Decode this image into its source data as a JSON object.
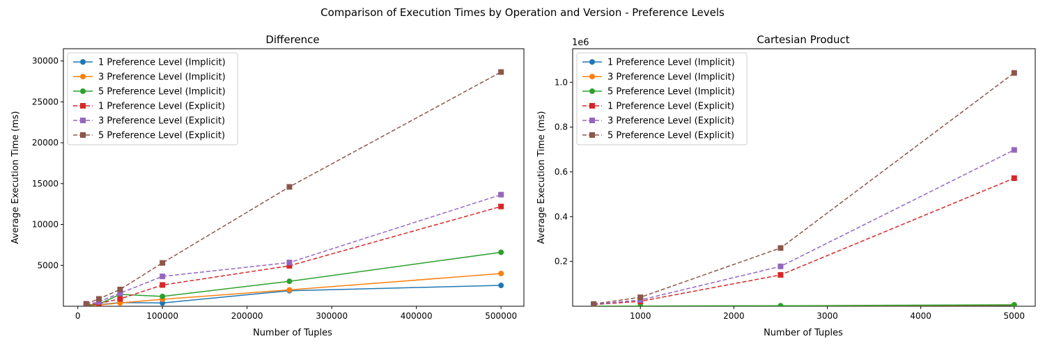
{
  "suptitle": "Comparison of Execution Times by Operation and Version - Preference Levels",
  "chart_data": [
    {
      "type": "line",
      "title": "Difference",
      "xlabel": "Number of Tuples",
      "ylabel": "Average Execution Time (ms)",
      "xlim": [
        -17000,
        527000
      ],
      "ylim": [
        0,
        31500
      ],
      "xticks": [
        0,
        100000,
        200000,
        300000,
        400000,
        500000
      ],
      "xtick_labels": [
        "0",
        "100000",
        "200000",
        "300000",
        "400000",
        "500000"
      ],
      "yticks": [
        5000,
        10000,
        15000,
        20000,
        25000,
        30000
      ],
      "ytick_labels": [
        "5000",
        "10000",
        "15000",
        "20000",
        "25000",
        "30000"
      ],
      "offset_label": "",
      "grid": false,
      "legend_position": "upper-left",
      "x": [
        10000,
        25000,
        50000,
        100000,
        250000,
        500000
      ],
      "series": [
        {
          "name": "1 Preference Level (Implicit)",
          "color": "#1f77b4",
          "style": "solid",
          "marker": "circle",
          "values": [
            150,
            200,
            450,
            400,
            1900,
            2550
          ]
        },
        {
          "name": "3 Preference Level (Implicit)",
          "color": "#ff7f0e",
          "style": "solid",
          "marker": "circle",
          "values": [
            100,
            150,
            400,
            850,
            2000,
            4000
          ]
        },
        {
          "name": "5 Preference Level (Implicit)",
          "color": "#2ca02c",
          "style": "solid",
          "marker": "circle",
          "values": [
            150,
            250,
            1450,
            1200,
            3050,
            6600
          ]
        },
        {
          "name": "1 Preference Level (Explicit)",
          "color": "#d62728",
          "style": "dashed",
          "marker": "square",
          "values": [
            150,
            350,
            900,
            2600,
            4950,
            12200
          ]
        },
        {
          "name": "3 Preference Level (Explicit)",
          "color": "#9467bd",
          "style": "dashed",
          "marker": "square",
          "values": [
            200,
            550,
            1600,
            3650,
            5350,
            13650
          ]
        },
        {
          "name": "5 Preference Level (Explicit)",
          "color": "#8c564b",
          "style": "dashed",
          "marker": "square",
          "values": [
            300,
            900,
            2050,
            5300,
            14600,
            28650
          ]
        }
      ]
    },
    {
      "type": "line",
      "title": "Cartesian Product",
      "xlabel": "Number of Tuples",
      "ylabel": "Average Execution Time (ms)",
      "xlim": [
        275,
        5225
      ],
      "ylim": [
        0,
        1150000
      ],
      "xticks": [
        1000,
        2000,
        3000,
        4000,
        5000
      ],
      "xtick_labels": [
        "1000",
        "2000",
        "3000",
        "4000",
        "5000"
      ],
      "yticks": [
        200000,
        400000,
        600000,
        800000,
        1000000
      ],
      "ytick_labels": [
        "0.2",
        "0.4",
        "0.6",
        "0.8",
        "1.0"
      ],
      "offset_label": "1e6",
      "grid": false,
      "legend_position": "upper-left",
      "x": [
        500,
        1000,
        2500,
        5000
      ],
      "series": [
        {
          "name": "1 Preference Level (Implicit)",
          "color": "#1f77b4",
          "style": "solid",
          "marker": "circle",
          "values": [
            200,
            500,
            1500,
            4000
          ]
        },
        {
          "name": "3 Preference Level (Implicit)",
          "color": "#ff7f0e",
          "style": "solid",
          "marker": "circle",
          "values": [
            250,
            600,
            1800,
            5000
          ]
        },
        {
          "name": "5 Preference Level (Implicit)",
          "color": "#2ca02c",
          "style": "solid",
          "marker": "circle",
          "values": [
            300,
            700,
            2200,
            6500
          ]
        },
        {
          "name": "1 Preference Level (Explicit)",
          "color": "#d62728",
          "style": "dashed",
          "marker": "square",
          "values": [
            7000,
            22000,
            140000,
            572000
          ]
        },
        {
          "name": "3 Preference Level (Explicit)",
          "color": "#9467bd",
          "style": "dashed",
          "marker": "square",
          "values": [
            8000,
            28000,
            178000,
            698000
          ]
        },
        {
          "name": "5 Preference Level (Explicit)",
          "color": "#8c564b",
          "style": "dashed",
          "marker": "square",
          "values": [
            10000,
            40000,
            260000,
            1042000
          ]
        }
      ]
    }
  ]
}
